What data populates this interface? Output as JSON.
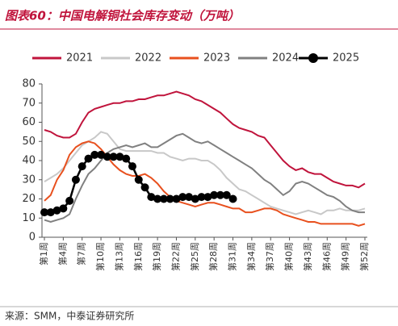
{
  "chart_data": {
    "type": "line",
    "title": "图表60：中国电解铜社会库存变动（万吨）",
    "source": "来源：SMM，中泰证券研究所",
    "categories": [
      "第1周",
      null,
      null,
      "第4周",
      null,
      null,
      "第7周",
      null,
      null,
      "第10周",
      null,
      null,
      "第13周",
      null,
      null,
      "第16周",
      null,
      null,
      "第19周",
      null,
      null,
      "第22周",
      null,
      null,
      "第25周",
      null,
      null,
      "第28周",
      null,
      null,
      "第31周",
      null,
      null,
      "第34周",
      null,
      null,
      "第37周",
      null,
      null,
      "第40周",
      null,
      null,
      "第43周",
      null,
      null,
      "第46周",
      null,
      null,
      "第49周",
      null,
      null,
      "第52周"
    ],
    "ylim": [
      0,
      80
    ],
    "yticks": [
      0,
      10,
      20,
      30,
      40,
      50,
      60,
      70,
      80
    ],
    "grid": false,
    "legend": "top",
    "series": [
      {
        "name": "2021",
        "color": "#c0143c",
        "values": [
          56,
          55,
          53,
          52,
          52,
          54,
          60,
          65,
          67,
          68,
          69,
          70,
          70,
          71,
          71,
          72,
          72,
          73,
          74,
          74,
          75,
          76,
          75,
          74,
          72,
          71,
          69,
          67,
          65,
          62,
          59,
          57,
          56,
          55,
          53,
          52,
          48,
          44,
          40,
          37,
          35,
          36,
          34,
          33,
          33,
          31,
          29,
          28,
          27,
          27,
          26,
          28
        ]
      },
      {
        "name": "2022",
        "color": "#c8c8c8",
        "values": [
          29,
          31,
          33,
          36,
          40,
          44,
          48,
          50,
          52,
          55,
          54,
          50,
          46,
          45,
          45,
          45,
          45,
          45,
          44,
          44,
          42,
          41,
          40,
          41,
          41,
          40,
          40,
          38,
          35,
          31,
          28,
          25,
          24,
          22,
          20,
          18,
          16,
          15,
          14,
          13,
          12,
          13,
          14,
          13,
          12,
          14,
          14,
          15,
          14,
          14,
          14,
          15
        ]
      },
      {
        "name": "2023",
        "color": "#e8501e",
        "values": [
          19,
          22,
          30,
          35,
          43,
          47,
          49,
          50,
          49,
          46,
          42,
          38,
          35,
          33,
          32,
          32,
          33,
          31,
          28,
          24,
          21,
          19,
          18,
          17,
          16,
          17,
          18,
          18,
          17,
          16,
          15,
          15,
          13,
          13,
          14,
          15,
          15,
          14,
          12,
          11,
          10,
          9,
          8,
          8,
          7,
          7,
          7,
          7,
          7,
          7,
          6,
          7
        ]
      },
      {
        "name": "2024",
        "color": "#808080",
        "values": [
          9,
          8,
          9,
          10,
          12,
          20,
          27,
          33,
          36,
          40,
          44,
          46,
          47,
          48,
          47,
          48,
          49,
          47,
          47,
          49,
          51,
          53,
          54,
          52,
          50,
          49,
          50,
          48,
          46,
          44,
          42,
          40,
          38,
          36,
          33,
          30,
          28,
          25,
          22,
          24,
          28,
          29,
          28,
          26,
          24,
          22,
          21,
          19,
          16,
          14,
          13,
          13
        ]
      },
      {
        "name": "2025",
        "color": "#000000",
        "marker": "circle",
        "values": [
          13,
          13,
          14,
          15,
          19,
          30,
          37,
          41,
          43,
          43,
          42,
          42,
          42,
          41,
          37,
          30,
          26,
          21,
          20,
          20,
          20,
          20,
          21,
          21,
          20,
          21,
          21,
          22,
          22,
          22,
          20,
          null,
          null,
          null,
          null,
          null,
          null,
          null,
          null,
          null,
          null,
          null,
          null,
          null,
          null,
          null,
          null,
          null,
          null,
          null,
          null,
          null
        ]
      }
    ]
  }
}
